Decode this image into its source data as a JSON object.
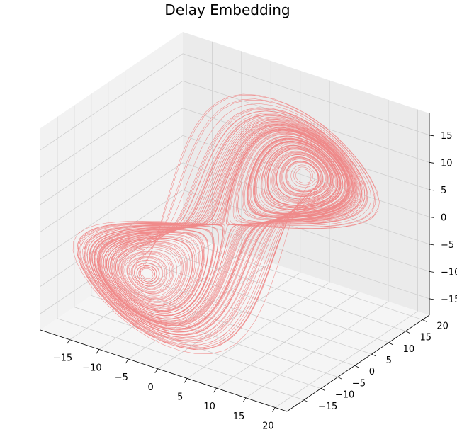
{
  "chart_data": {
    "type": "line",
    "projection": "3d",
    "title": "Delay Embedding",
    "xlabel": "",
    "ylabel": "",
    "zlabel": "",
    "grid": true,
    "legend": "none",
    "series": [
      {
        "color": "#f08080",
        "kind": "lorenz-attractor-delay-embedding",
        "lobe_centers": [
          [
            -8.5,
            -8.5,
            -8.5
          ],
          [
            8.5,
            8.5,
            8.5
          ]
        ]
      }
    ],
    "xlim": [
      -20,
      22
    ],
    "ylim": [
      -20,
      22
    ],
    "zlim": [
      -18,
      19
    ],
    "xticks": [
      -15,
      -10,
      -5,
      0,
      5,
      10,
      15,
      20
    ],
    "yticks": [
      -15,
      -10,
      -5,
      0,
      5,
      10,
      15,
      20
    ],
    "zticks": [
      -15,
      -10,
      -5,
      0,
      5,
      10,
      15
    ],
    "xtick_labels": [
      "−15",
      "−10",
      "−5",
      "0",
      "5",
      "10",
      "15",
      "20"
    ],
    "ytick_labels": [
      "−15",
      "−10",
      "−5",
      "0",
      "5",
      "10",
      "15",
      "20"
    ],
    "ztick_labels": [
      "−15",
      "−10",
      "−5",
      "0",
      "5",
      "10",
      "15"
    ]
  }
}
